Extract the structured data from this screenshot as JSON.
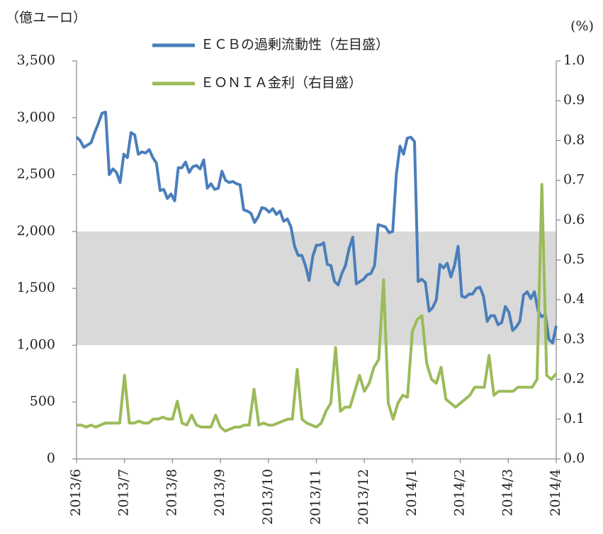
{
  "chart_data": {
    "type": "line",
    "y_axis_label": "（億ユーロ）",
    "y2_axis_label": "(%)",
    "x_labels": [
      "2013/6",
      "2013/7",
      "2013/8",
      "2013/9",
      "2013/10",
      "2013/11",
      "2013/12",
      "2014/1",
      "2014/2",
      "2014/3",
      "2014/4"
    ],
    "ylim": [
      0,
      3500
    ],
    "yticks": [
      0,
      500,
      {
        "value": 1000,
        "label": "1,000"
      },
      {
        "value": 1500,
        "label": "1,500"
      },
      {
        "value": 2000,
        "label": "2,000"
      },
      {
        "value": 2500,
        "label": "2,500"
      },
      {
        "value": 3000,
        "label": "3,000"
      },
      {
        "value": 3500,
        "label": "3,500"
      }
    ],
    "y2lim": [
      0,
      1
    ],
    "y2ticks": [
      {
        "value": 0,
        "label": "0.0"
      },
      0.1,
      0.2,
      0.3,
      0.4,
      0.5,
      0.6,
      0.7,
      0.8,
      0.9,
      {
        "value": 1,
        "label": "1.0"
      }
    ],
    "band": {
      "from": 1000,
      "to": 2000,
      "color": "#d9d9d9"
    },
    "legend": "top-center",
    "series": [
      {
        "name": "ＥＣＢの過剰流動性（左目盛）",
        "color": "#4a7ebb",
        "axis": "y",
        "values": [
          2830,
          2800,
          2740,
          2760,
          2780,
          2870,
          2950,
          3040,
          3050,
          2500,
          2550,
          2520,
          2430,
          2680,
          2650,
          2870,
          2850,
          2680,
          2700,
          2690,
          2720,
          2650,
          2600,
          2360,
          2370,
          2290,
          2330,
          2270,
          2560,
          2560,
          2610,
          2520,
          2570,
          2580,
          2550,
          2630,
          2380,
          2420,
          2370,
          2380,
          2530,
          2450,
          2430,
          2440,
          2420,
          2410,
          2190,
          2180,
          2160,
          2080,
          2130,
          2210,
          2200,
          2170,
          2200,
          2150,
          2180,
          2090,
          2110,
          2040,
          1870,
          1790,
          1790,
          1700,
          1570,
          1780,
          1880,
          1880,
          1900,
          1710,
          1700,
          1560,
          1530,
          1630,
          1700,
          1850,
          1950,
          1540,
          1560,
          1580,
          1620,
          1630,
          1700,
          2060,
          2050,
          2040,
          1990,
          2000,
          2500,
          2750,
          2680,
          2820,
          2830,
          2790,
          1560,
          1580,
          1550,
          1300,
          1330,
          1400,
          1710,
          1680,
          1720,
          1600,
          1700,
          1870,
          1430,
          1420,
          1450,
          1450,
          1500,
          1510,
          1430,
          1210,
          1260,
          1260,
          1180,
          1200,
          1340,
          1290,
          1130,
          1160,
          1210,
          1440,
          1470,
          1410,
          1470,
          1300,
          1250,
          1270,
          1050,
          1020,
          1170
        ]
      },
      {
        "name": "ＥＯＮＩＡ金利（右目盛）",
        "color": "#9bbb59",
        "axis": "y2",
        "values": [
          0.085,
          0.085,
          0.08,
          0.085,
          0.08,
          0.085,
          0.09,
          0.09,
          0.09,
          0.09,
          0.21,
          0.09,
          0.09,
          0.095,
          0.09,
          0.09,
          0.1,
          0.1,
          0.105,
          0.1,
          0.1,
          0.145,
          0.09,
          0.085,
          0.11,
          0.085,
          0.08,
          0.08,
          0.08,
          0.11,
          0.08,
          0.07,
          0.075,
          0.08,
          0.08,
          0.085,
          0.085,
          0.175,
          0.085,
          0.09,
          0.085,
          0.085,
          0.09,
          0.095,
          0.1,
          0.1,
          0.225,
          0.1,
          0.09,
          0.085,
          0.08,
          0.09,
          0.12,
          0.14,
          0.28,
          0.12,
          0.13,
          0.13,
          0.17,
          0.21,
          0.17,
          0.19,
          0.23,
          0.25,
          0.45,
          0.14,
          0.1,
          0.14,
          0.16,
          0.155,
          0.32,
          0.35,
          0.36,
          0.24,
          0.2,
          0.19,
          0.23,
          0.15,
          0.14,
          0.13,
          0.14,
          0.15,
          0.16,
          0.18,
          0.18,
          0.18,
          0.26,
          0.16,
          0.17,
          0.17,
          0.17,
          0.17,
          0.18,
          0.18,
          0.18,
          0.18,
          0.2,
          0.69,
          0.21,
          0.2,
          0.215
        ]
      }
    ]
  }
}
